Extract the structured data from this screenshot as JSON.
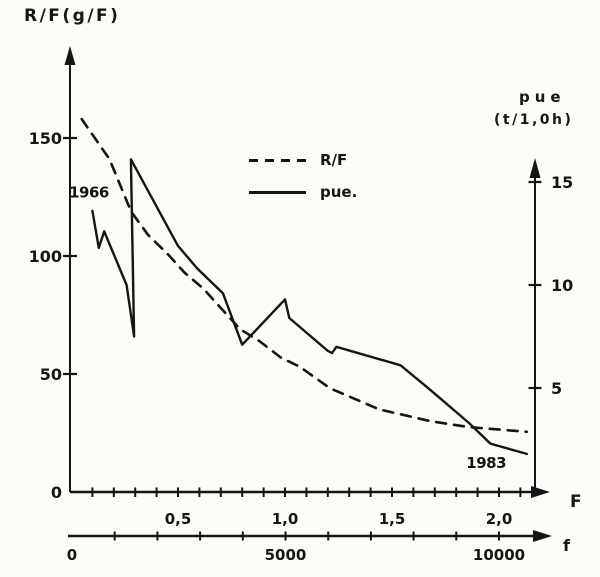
{
  "figure": {
    "left_axis_title": "R/F(g/F)",
    "right_axis_title": "pue",
    "right_axis_units": "(t/1,0h)",
    "x_axis_letter": "F",
    "f_axis_letter": "f",
    "legend": {
      "rf_label": "R/F",
      "pue_label": "pue."
    },
    "ink_color": "#151515",
    "paper_color": "#fbfbf8"
  },
  "chart_data": {
    "type": "line",
    "title": "",
    "x_axis": {
      "label": "F",
      "range": [
        0,
        2.2
      ],
      "minor_tick_step": 0.1,
      "minor_tick_range": [
        0.1,
        2.1
      ],
      "major_tick_labels": [
        {
          "v": 0.5,
          "label": "0,5"
        },
        {
          "v": 1.0,
          "label": "1,0"
        },
        {
          "v": 1.5,
          "label": "1,5"
        },
        {
          "v": 2.0,
          "label": "2,0"
        }
      ]
    },
    "secondary_x_axis": {
      "label": "f",
      "range": [
        0,
        11000
      ],
      "tick_step": 1000,
      "tick_labels": [
        {
          "v": 0,
          "label": "0"
        },
        {
          "v": 5000,
          "label": "5000"
        },
        {
          "v": 10000,
          "label": "10000"
        }
      ]
    },
    "y_axis_left": {
      "label": "R/F(g/F)",
      "range": [
        0,
        170
      ],
      "ticks": [
        {
          "v": 0,
          "label": "0"
        },
        {
          "v": 50,
          "label": "50"
        },
        {
          "v": 100,
          "label": "100"
        },
        {
          "v": 150,
          "label": "150"
        }
      ]
    },
    "y_axis_right": {
      "label": "pue (t/1,0h)",
      "range": [
        0,
        16.5
      ],
      "ticks": [
        {
          "v": 5,
          "label": "5"
        },
        {
          "v": 10,
          "label": "10"
        },
        {
          "v": 15,
          "label": "15"
        }
      ]
    },
    "series": [
      {
        "name": "R/F",
        "axis": "left",
        "style": "dashed",
        "points": [
          [
            0.05,
            158
          ],
          [
            0.18,
            141
          ],
          [
            0.28,
            119
          ],
          [
            0.36,
            109
          ],
          [
            0.45,
            101
          ],
          [
            0.53,
            93
          ],
          [
            0.62,
            86
          ],
          [
            0.71,
            77
          ],
          [
            0.79,
            69
          ],
          [
            0.88,
            64
          ],
          [
            0.98,
            57
          ],
          [
            1.07,
            53
          ],
          [
            1.21,
            44
          ],
          [
            1.44,
            35
          ],
          [
            1.68,
            30
          ],
          [
            1.86,
            27.5
          ],
          [
            2.13,
            25.5
          ]
        ]
      },
      {
        "name": "pue",
        "axis": "right",
        "style": "solid",
        "points": [
          [
            0.1,
            13.6
          ],
          [
            0.13,
            11.8
          ],
          [
            0.155,
            12.6
          ],
          [
            0.26,
            10.0
          ],
          [
            0.295,
            7.5
          ],
          [
            0.28,
            16.1
          ],
          [
            0.5,
            11.9
          ],
          [
            0.59,
            10.8
          ],
          [
            0.71,
            9.6
          ],
          [
            0.8,
            7.1
          ],
          [
            1.0,
            9.3
          ],
          [
            1.02,
            8.4
          ],
          [
            1.2,
            6.8
          ],
          [
            1.22,
            6.7
          ],
          [
            1.24,
            7.0
          ],
          [
            1.54,
            6.1
          ],
          [
            1.68,
            4.9
          ],
          [
            1.86,
            3.3
          ],
          [
            1.96,
            2.3
          ],
          [
            2.13,
            1.8
          ]
        ]
      }
    ],
    "annotations": [
      {
        "text": "1966",
        "x": 0.084,
        "y": 14.5,
        "axis": "right"
      },
      {
        "text": "1983",
        "x": 1.94,
        "y": 1.35,
        "axis": "right"
      }
    ],
    "legend_entries": [
      "R/F",
      "pue."
    ],
    "grid": false
  }
}
